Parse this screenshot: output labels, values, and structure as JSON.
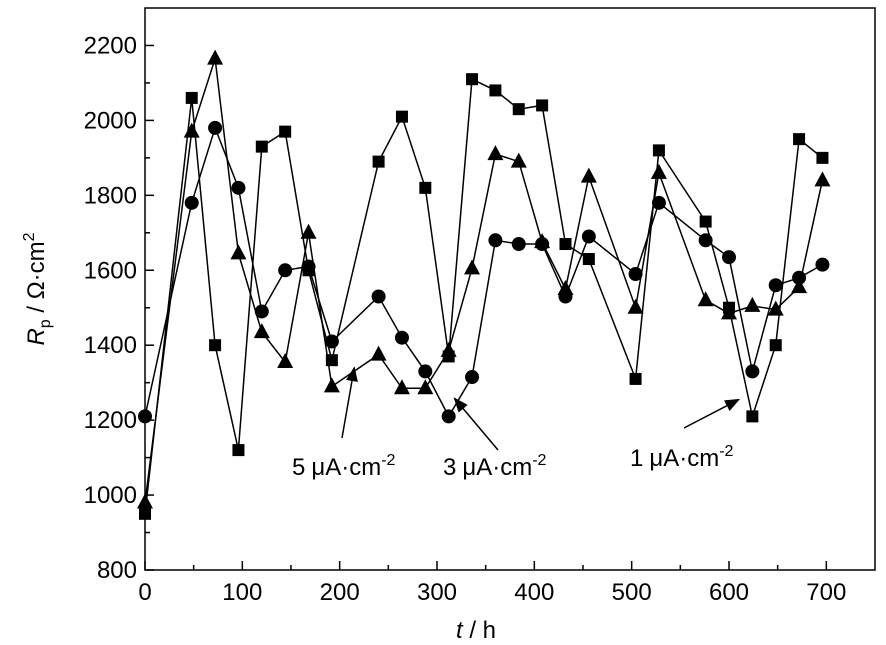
{
  "chart_data": {
    "type": "line",
    "title": "",
    "xlabel": {
      "var": "t",
      "unit": " / h"
    },
    "ylabel": {
      "var": "R",
      "sub": "p",
      "unit": " / Ω·cm",
      "sup": "2"
    },
    "xlim": [
      0,
      750
    ],
    "ylim": [
      800,
      2300
    ],
    "xticks": [
      0,
      100,
      200,
      300,
      400,
      500,
      600,
      700
    ],
    "yticks": [
      800,
      1000,
      1200,
      1400,
      1600,
      1800,
      2000,
      2200
    ],
    "series": [
      {
        "name": "1 μA·cm-2",
        "marker": "square",
        "x": [
          0,
          48,
          72,
          96,
          120,
          144,
          168,
          192,
          240,
          264,
          288,
          312,
          336,
          360,
          384,
          408,
          432,
          456,
          504,
          528,
          576,
          600,
          624,
          648,
          672,
          696
        ],
        "y": [
          950,
          2060,
          1400,
          1120,
          1930,
          1970,
          1600,
          1360,
          1890,
          2010,
          1820,
          1370,
          2110,
          2080,
          2030,
          2040,
          1670,
          1630,
          1310,
          1920,
          1730,
          1500,
          1210,
          1400,
          1950,
          1900
        ]
      },
      {
        "name": "3 μA·cm-2",
        "marker": "circle",
        "x": [
          0,
          48,
          72,
          96,
          120,
          144,
          168,
          192,
          240,
          264,
          288,
          312,
          336,
          360,
          384,
          408,
          432,
          456,
          504,
          528,
          576,
          600,
          624,
          648,
          672,
          696
        ],
        "y": [
          1210,
          1780,
          1980,
          1820,
          1490,
          1600,
          1610,
          1410,
          1530,
          1420,
          1330,
          1210,
          1315,
          1680,
          1670,
          1670,
          1530,
          1690,
          1590,
          1780,
          1680,
          1635,
          1330,
          1560,
          1580,
          1615
        ]
      },
      {
        "name": "5 μA·cm-2",
        "marker": "triangle",
        "x": [
          0,
          48,
          72,
          96,
          120,
          144,
          168,
          192,
          240,
          264,
          288,
          312,
          336,
          360,
          384,
          408,
          432,
          456,
          504,
          528,
          576,
          600,
          624,
          648,
          672,
          696
        ],
        "y": [
          980,
          1970,
          2165,
          1645,
          1435,
          1355,
          1700,
          1290,
          1375,
          1285,
          1285,
          1385,
          1605,
          1910,
          1890,
          1675,
          1550,
          1850,
          1500,
          1860,
          1520,
          1485,
          1505,
          1495,
          1555,
          1840
        ]
      }
    ],
    "annotations": [
      {
        "value": "5",
        "unit": "μA·cm",
        "sup": "-2",
        "points_to_x": 215,
        "points_to_y": 1340
      },
      {
        "value": "3",
        "unit": "μA·cm",
        "sup": "-2",
        "points_to_x": 318,
        "points_to_y": 1258
      },
      {
        "value": "1",
        "unit": "μA·cm",
        "sup": "-2",
        "points_to_x": 610,
        "points_to_y": 1255
      }
    ]
  }
}
